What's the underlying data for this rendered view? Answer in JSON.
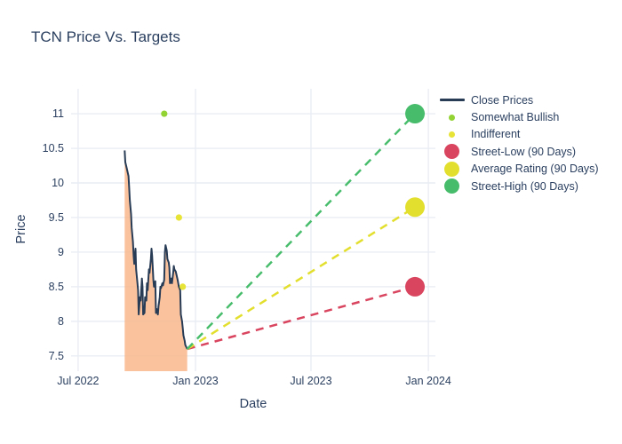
{
  "colors": {
    "text": "#2a3f5f",
    "grid": "#e9edf4",
    "background": "#ffffff"
  },
  "chart_data": {
    "type": "line",
    "title": "TCN Price Vs. Targets",
    "xlabel": "Date",
    "ylabel": "Price",
    "x_domain": [
      "2022-06-20",
      "2024-01-12"
    ],
    "ylim": [
      7.28,
      11.36
    ],
    "y_ticks": [
      {
        "value": 7.5,
        "label": "7.5"
      },
      {
        "value": 8,
        "label": "8"
      },
      {
        "value": 8.5,
        "label": "8.5"
      },
      {
        "value": 9,
        "label": "9"
      },
      {
        "value": 9.5,
        "label": "9.5"
      },
      {
        "value": 10,
        "label": "10"
      },
      {
        "value": 10.5,
        "label": "10.5"
      },
      {
        "value": 11,
        "label": "11"
      }
    ],
    "x_ticks": [
      {
        "value": "2022-07-01",
        "label": "Jul 2022"
      },
      {
        "value": "2023-01-01",
        "label": "Jan 2023"
      },
      {
        "value": "2023-07-01",
        "label": "Jul 2023"
      },
      {
        "value": "2024-01-01",
        "label": "Jan 2024"
      }
    ],
    "series": [
      {
        "key": "close",
        "name": "Close Prices",
        "type": "area-line",
        "color": "#293c56",
        "fill_color": "#f9b486",
        "legend_marker": "line",
        "x": [
          "2022-09-12",
          "2022-09-13",
          "2022-09-15",
          "2022-09-16",
          "2022-09-18",
          "2022-09-19",
          "2022-09-20",
          "2022-09-22",
          "2022-09-23",
          "2022-09-25",
          "2022-09-26",
          "2022-09-27",
          "2022-09-29",
          "2022-09-30",
          "2022-10-02",
          "2022-10-03",
          "2022-10-04",
          "2022-10-06",
          "2022-10-07",
          "2022-10-09",
          "2022-10-10",
          "2022-10-11",
          "2022-10-13",
          "2022-10-14",
          "2022-10-16",
          "2022-10-17",
          "2022-10-18",
          "2022-10-20",
          "2022-10-21",
          "2022-10-23",
          "2022-10-24",
          "2022-10-25",
          "2022-10-27",
          "2022-10-28",
          "2022-10-30",
          "2022-10-31",
          "2022-11-01",
          "2022-11-03",
          "2022-11-04",
          "2022-11-06",
          "2022-11-07",
          "2022-11-08",
          "2022-11-10",
          "2022-11-11",
          "2022-11-13",
          "2022-11-14",
          "2022-11-15",
          "2022-11-17",
          "2022-11-18",
          "2022-11-20",
          "2022-11-21",
          "2022-11-22",
          "2022-11-24",
          "2022-11-25",
          "2022-11-27",
          "2022-11-28",
          "2022-11-29",
          "2022-12-01",
          "2022-12-02",
          "2022-12-04",
          "2022-12-05",
          "2022-12-06",
          "2022-12-08",
          "2022-12-09",
          "2022-12-11",
          "2022-12-12",
          "2022-12-13",
          "2022-12-15",
          "2022-12-16",
          "2022-12-18",
          "2022-12-19"
        ],
        "y": [
          10.47,
          10.3,
          10.22,
          10.18,
          10.1,
          9.95,
          9.75,
          9.55,
          9.35,
          9.15,
          8.95,
          8.83,
          9.05,
          8.75,
          8.55,
          8.45,
          8.1,
          8.35,
          8.3,
          8.62,
          8.5,
          8.1,
          8.12,
          8.35,
          8.3,
          8.55,
          8.45,
          8.75,
          8.7,
          8.9,
          9.05,
          8.95,
          8.6,
          8.5,
          8.58,
          8.12,
          8.18,
          8.1,
          8.22,
          8.35,
          8.5,
          8.48,
          8.55,
          8.52,
          8.6,
          9.0,
          9.1,
          9.02,
          8.9,
          8.85,
          8.78,
          8.55,
          8.62,
          8.55,
          8.7,
          8.8,
          8.75,
          8.72,
          8.68,
          8.6,
          8.55,
          8.5,
          8.45,
          8.1,
          8.0,
          7.9,
          7.8,
          7.72,
          7.66,
          7.62,
          7.6
        ]
      },
      {
        "key": "somewhat_bullish",
        "name": "Somewhat Bullish",
        "type": "scatter",
        "color": "#93d333",
        "legend_marker": "dot-small",
        "points": [
          {
            "date": "2022-11-13",
            "price": 11.0
          }
        ]
      },
      {
        "key": "indifferent",
        "name": "Indifferent",
        "type": "scatter",
        "color": "#e8e337",
        "legend_marker": "dot-small",
        "points": [
          {
            "date": "2022-12-06",
            "price": 9.5
          },
          {
            "date": "2022-12-12",
            "price": 8.5
          }
        ]
      },
      {
        "key": "street_low",
        "name": "Street-Low (90 Days)",
        "type": "target",
        "color": "#d9455f",
        "legend_marker": "dot-big",
        "line_from": {
          "date": "2022-12-19",
          "price": 7.6
        },
        "point": {
          "date": "2023-12-11",
          "price": 8.5
        }
      },
      {
        "key": "average_rating",
        "name": "Average Rating (90 Days)",
        "type": "target",
        "color": "#e3df2e",
        "legend_marker": "dot-big",
        "line_from": {
          "date": "2022-12-19",
          "price": 7.6
        },
        "point": {
          "date": "2023-12-11",
          "price": 9.65
        }
      },
      {
        "key": "street_high",
        "name": "Street-High (90 Days)",
        "type": "target",
        "color": "#47bd6b",
        "legend_marker": "dot-big",
        "line_from": {
          "date": "2022-12-19",
          "price": 7.6
        },
        "point": {
          "date": "2023-12-11",
          "price": 11.0
        }
      }
    ]
  }
}
